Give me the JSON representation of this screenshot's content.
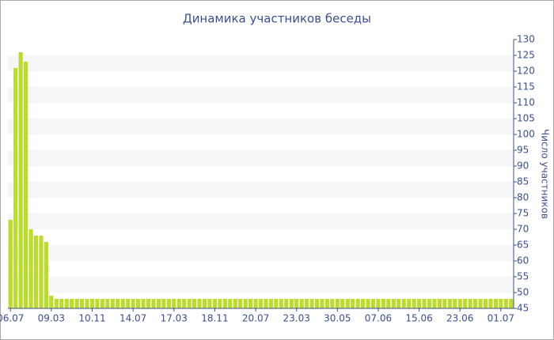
{
  "chart_data": {
    "type": "bar",
    "title": "Динамика участников беседы",
    "y_label": "Число участников",
    "categories": [
      "06.07",
      null,
      null,
      null,
      null,
      null,
      null,
      null,
      "09.03",
      null,
      null,
      null,
      null,
      null,
      null,
      null,
      "10.11",
      null,
      null,
      null,
      null,
      null,
      null,
      null,
      "14.07",
      null,
      null,
      null,
      null,
      null,
      null,
      null,
      "17.03",
      null,
      null,
      null,
      null,
      null,
      null,
      null,
      "18.11",
      null,
      null,
      null,
      null,
      null,
      null,
      null,
      "20.07",
      null,
      null,
      null,
      null,
      null,
      null,
      null,
      "23.03",
      null,
      null,
      null,
      null,
      null,
      null,
      null,
      "30.05",
      null,
      null,
      null,
      null,
      null,
      null,
      null,
      "07.06",
      null,
      null,
      null,
      null,
      null,
      null,
      null,
      "15.06",
      null,
      null,
      null,
      null,
      null,
      null,
      null,
      "23.06",
      null,
      null,
      null,
      null,
      null,
      null,
      null,
      "01.07",
      null,
      null
    ],
    "values": [
      73,
      121,
      126,
      123,
      70,
      68,
      68,
      66,
      49,
      48,
      48,
      48,
      48,
      48,
      48,
      48,
      48,
      48,
      48,
      48,
      48,
      48,
      48,
      48,
      48,
      48,
      48,
      48,
      48,
      48,
      48,
      48,
      48,
      48,
      48,
      48,
      48,
      48,
      48,
      48,
      48,
      48,
      48,
      48,
      48,
      48,
      48,
      48,
      48,
      48,
      48,
      48,
      48,
      48,
      48,
      48,
      48,
      48,
      48,
      48,
      48,
      48,
      48,
      48,
      48,
      48,
      48,
      48,
      48,
      48,
      48,
      48,
      48,
      48,
      48,
      48,
      48,
      48,
      48,
      48,
      48,
      48,
      48,
      48,
      48,
      48,
      48,
      48,
      48,
      48,
      48,
      48,
      48,
      48,
      48,
      48,
      48,
      48,
      48
    ],
    "color": "#bcdc2c",
    "ylim": [
      45,
      130
    ],
    "yticks": [
      45,
      50,
      55,
      60,
      65,
      70,
      75,
      80,
      85,
      90,
      95,
      100,
      105,
      110,
      115,
      120,
      125,
      130
    ],
    "y_axis_side": "right",
    "grid": true
  }
}
